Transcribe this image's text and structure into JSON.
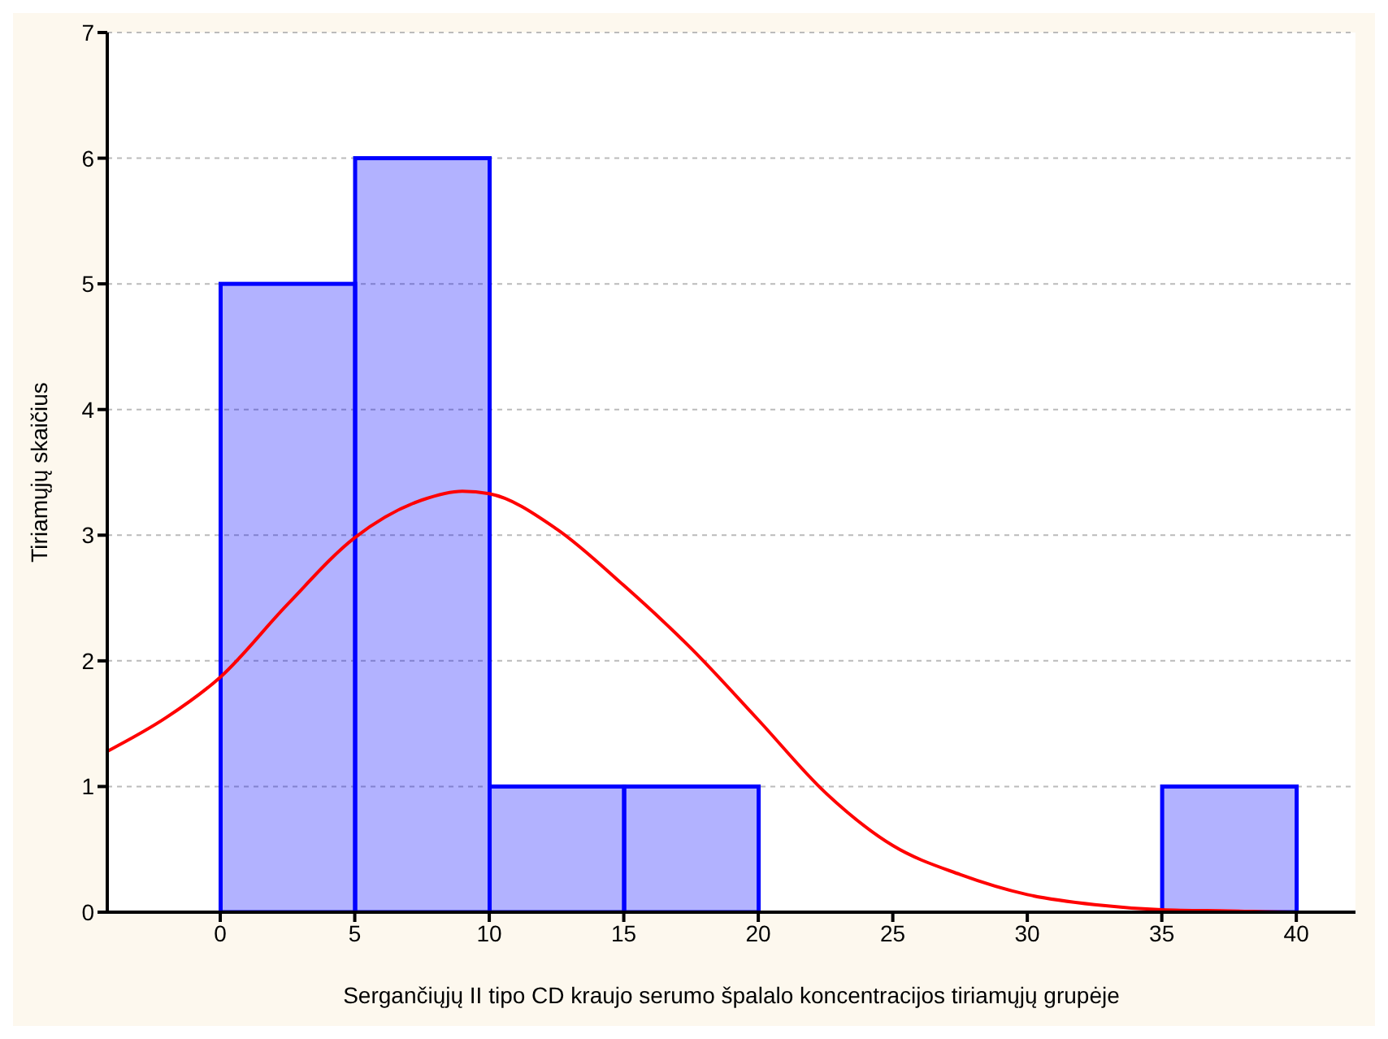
{
  "chart_data": {
    "type": "histogram",
    "xlabel": "Sergančiųjų II tipo CD kraujo serumo špalalo koncentracijos tiriamųjų grupėje",
    "ylabel": "Tiriamųjų skaičius",
    "bins": [
      0,
      5,
      10,
      15,
      20,
      25,
      30,
      35,
      40
    ],
    "values": [
      5,
      6,
      1,
      1,
      0,
      0,
      0,
      1
    ],
    "color": "#0000ff",
    "series": [
      {
        "type": "line",
        "color": "#ff0000",
        "x": [
          -4.2,
          -2,
          0,
          2.5,
          5,
          7.5,
          9,
          10,
          12.5,
          15,
          17.5,
          20,
          22.5,
          25,
          27.5,
          30,
          32.5,
          35,
          37.5,
          40,
          42.2
        ],
        "values": [
          1.28,
          1.55,
          1.87,
          2.45,
          2.98,
          3.28,
          3.35,
          3.33,
          3.05,
          2.6,
          2.1,
          1.53,
          0.95,
          0.53,
          0.3,
          0.14,
          0.06,
          0.02,
          0.01,
          0,
          0
        ]
      }
    ],
    "xlim": [
      -4.2,
      42.2
    ],
    "xticks": [
      0,
      5,
      10,
      15,
      20,
      25,
      30,
      35,
      40
    ],
    "ylim": [
      0,
      7
    ],
    "yticks": [
      0,
      1,
      2,
      3,
      4,
      5,
      6,
      7
    ],
    "grid": "y",
    "marker": "none"
  }
}
